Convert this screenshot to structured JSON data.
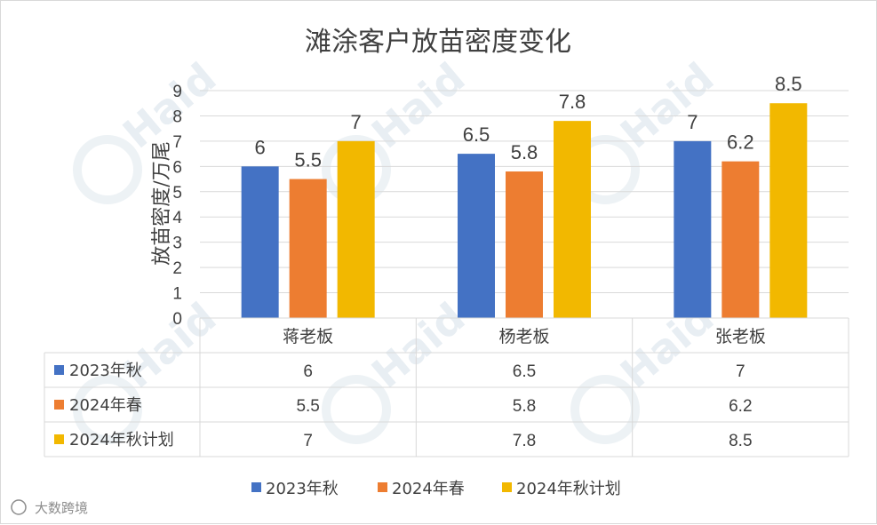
{
  "chart_data": {
    "type": "bar",
    "title": "滩涂客户放苗密度变化",
    "ylabel": "放苗密度/万尾",
    "xlabel": "",
    "ylim": [
      0,
      9
    ],
    "yticks": [
      "0",
      "1",
      "2",
      "3",
      "4",
      "5",
      "6",
      "7",
      "8",
      "9"
    ],
    "categories": [
      "蒋老板",
      "杨老板",
      "张老板"
    ],
    "series": [
      {
        "name": "2023年秋",
        "color": "#4472c4",
        "values": [
          6,
          6.5,
          7
        ],
        "labels": [
          "6",
          "6.5",
          "7"
        ]
      },
      {
        "name": "2024年春",
        "color": "#ed7d31",
        "values": [
          5.5,
          5.8,
          6.2
        ],
        "labels": [
          "5.5",
          "5.8",
          "6.2"
        ]
      },
      {
        "name": "2024年秋计划",
        "color": "#f2b800",
        "values": [
          7,
          7.8,
          8.5
        ],
        "labels": [
          "7",
          "7.8",
          "8.5"
        ]
      }
    ],
    "gridlines": true,
    "legend": "bottom",
    "data_table": true
  },
  "watermark": {
    "brand": "Haid",
    "corner_text": "大数跨境"
  }
}
